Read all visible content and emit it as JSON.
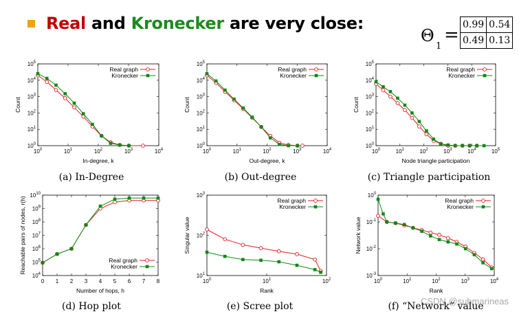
{
  "title": {
    "real": "Real",
    "and": " and ",
    "kronecker": "Kronecker",
    "rest": " are very close:"
  },
  "theta": {
    "symbol": "Θ",
    "subscript": "1",
    "equals": "=",
    "matrix": [
      [
        "0.99",
        "0.54"
      ],
      [
        "0.49",
        "0.13"
      ]
    ]
  },
  "watermark": "CSDN @submarineas",
  "colors": {
    "real": "#e8181e",
    "kronecker": "#0c8a14",
    "title_real": "#c00000",
    "title_kronecker": "#1e8a1e",
    "bullet": "#f2a20c"
  },
  "chart_data": [
    {
      "type": "line",
      "caption": "(a) In-Degree",
      "xlabel": "In-degree, k",
      "ylabel": "Count",
      "xscale": "log",
      "yscale": "log",
      "xlim": [
        1,
        10000
      ],
      "ylim": [
        1,
        100000
      ],
      "xticks": [
        1,
        10,
        100,
        1000,
        10000
      ],
      "xtick_labels": [
        "10^0",
        "10^1",
        "10^2",
        "10^3",
        "10^4"
      ],
      "yticks": [
        1,
        10,
        100,
        1000,
        10000,
        100000
      ],
      "ytick_labels": [
        "10^0",
        "10^1",
        "10^2",
        "10^3",
        "10^4",
        "10^5"
      ],
      "legend": "top-right",
      "series": [
        {
          "name": "Real graph",
          "marker": "circle-open",
          "x": [
            1,
            2,
            4,
            8,
            16,
            32,
            64,
            128,
            256,
            512,
            1024,
            3000
          ],
          "y": [
            20000,
            8000,
            2500,
            800,
            220,
            60,
            15,
            4,
            1.6,
            1.1,
            1,
            1
          ]
        },
        {
          "name": "Kronecker",
          "marker": "square-filled",
          "x": [
            1,
            2,
            4,
            8,
            16,
            32,
            64,
            128,
            256,
            512,
            1024
          ],
          "y": [
            25000,
            13000,
            5000,
            1500,
            400,
            90,
            20,
            4,
            1.4,
            1.1,
            1
          ]
        }
      ]
    },
    {
      "type": "line",
      "caption": "(b) Out-degree",
      "xlabel": "Out-degree, k",
      "ylabel": "Count",
      "xscale": "log",
      "yscale": "log",
      "xlim": [
        1,
        10000
      ],
      "ylim": [
        1,
        100000
      ],
      "xticks": [
        1,
        10,
        100,
        1000,
        10000
      ],
      "xtick_labels": [
        "10^0",
        "10^1",
        "10^2",
        "10^3",
        "10^4"
      ],
      "yticks": [
        1,
        10,
        100,
        1000,
        10000,
        100000
      ],
      "ytick_labels": [
        "10^0",
        "10^1",
        "10^2",
        "10^3",
        "10^4",
        "10^5"
      ],
      "legend": "top-right",
      "series": [
        {
          "name": "Real graph",
          "marker": "circle-open",
          "x": [
            1,
            2,
            4,
            8,
            16,
            32,
            64,
            128,
            256,
            512,
            1024,
            1500
          ],
          "y": [
            20000,
            7000,
            2000,
            600,
            180,
            50,
            14,
            4,
            1.5,
            1.1,
            1,
            1
          ]
        },
        {
          "name": "Kronecker",
          "marker": "square-filled",
          "x": [
            1,
            2,
            4,
            8,
            16,
            32,
            64,
            128,
            256,
            512,
            1024
          ],
          "y": [
            25000,
            9000,
            2500,
            700,
            200,
            55,
            14,
            3,
            1.2,
            1,
            1
          ]
        }
      ]
    },
    {
      "type": "line",
      "caption": "(c) Triangle participation",
      "xlabel": "Node triangle participation",
      "ylabel": "Count",
      "xscale": "log",
      "yscale": "log",
      "xlim": [
        1,
        100000
      ],
      "ylim": [
        1,
        100000
      ],
      "xticks": [
        1,
        10,
        100,
        1000,
        10000,
        100000
      ],
      "xtick_labels": [
        "10^0",
        "10^1",
        "10^2",
        "10^3",
        "10^4",
        "10^5"
      ],
      "yticks": [
        1,
        10,
        100,
        1000,
        10000,
        100000
      ],
      "ytick_labels": [
        "10^0",
        "10^1",
        "10^2",
        "10^3",
        "10^4",
        "10^5"
      ],
      "legend": "top-right",
      "series": [
        {
          "name": "Real graph",
          "marker": "circle-open",
          "x": [
            1,
            2,
            4,
            8,
            16,
            32,
            64,
            128,
            256,
            512,
            1024,
            2048,
            4096,
            8192,
            16384
          ],
          "y": [
            6000,
            2500,
            1000,
            400,
            150,
            50,
            15,
            5,
            2,
            1.3,
            1,
            1,
            1,
            1,
            1
          ]
        },
        {
          "name": "Kronecker",
          "marker": "square-filled",
          "x": [
            1,
            2,
            4,
            8,
            16,
            32,
            64,
            128,
            256,
            512,
            1024,
            2048,
            4096,
            8192,
            16384,
            32768
          ],
          "y": [
            8000,
            4000,
            2000,
            800,
            300,
            100,
            30,
            8,
            2.5,
            1.3,
            1.1,
            1,
            1,
            1,
            1,
            1
          ]
        }
      ]
    },
    {
      "type": "line",
      "caption": "(d) Hop plot",
      "xlabel": "Number of hops, h",
      "ylabel": "Reachable pairs of nodes, r(h)",
      "xscale": "linear",
      "yscale": "log",
      "xlim": [
        0,
        8
      ],
      "ylim": [
        10000,
        10000000000
      ],
      "xticks": [
        0,
        1,
        2,
        3,
        4,
        5,
        6,
        7,
        8
      ],
      "xtick_labels": [
        "0",
        "1",
        "2",
        "3",
        "4",
        "5",
        "6",
        "7",
        "8"
      ],
      "yticks": [
        10000,
        100000,
        1000000,
        10000000,
        100000000,
        1000000000,
        10000000000
      ],
      "ytick_labels": [
        "10^4",
        "10^5",
        "10^6",
        "10^7",
        "10^8",
        "10^9",
        "10^10"
      ],
      "legend": "bottom-right",
      "series": [
        {
          "name": "Real graph",
          "marker": "circle-open",
          "x": [
            0,
            1,
            2,
            3,
            4,
            5,
            6,
            7,
            8
          ],
          "y": [
            90000,
            400000,
            1000000,
            60000000,
            1000000000,
            3000000000,
            4000000000,
            4000000000,
            4000000000
          ]
        },
        {
          "name": "Kronecker",
          "marker": "square-filled",
          "x": [
            0,
            1,
            2,
            3,
            4,
            5,
            6,
            7,
            8
          ],
          "y": [
            90000,
            400000,
            1000000,
            60000000,
            1500000000,
            5000000000,
            6000000000,
            6000000000,
            6000000000
          ]
        }
      ]
    },
    {
      "type": "line",
      "caption": "(e) Scree plot",
      "xlabel": "Rank",
      "ylabel": "Singular value",
      "xscale": "log",
      "yscale": "log",
      "xlim": [
        1,
        100
      ],
      "ylim": [
        10,
        1000
      ],
      "xticks": [
        1,
        10,
        100
      ],
      "xtick_labels": [
        "10^0",
        "10^1",
        "10^2"
      ],
      "yticks": [
        10,
        100,
        1000
      ],
      "ytick_labels": [
        "10^1",
        "10^2",
        "10^3"
      ],
      "legend": "top-right",
      "series": [
        {
          "name": "Real graph",
          "marker": "circle-open",
          "x": [
            1,
            2,
            4,
            8,
            16,
            32,
            64,
            80
          ],
          "y": [
            140,
            80,
            58,
            48,
            40,
            34,
            25,
            13
          ]
        },
        {
          "name": "Kronecker",
          "marker": "square-filled",
          "x": [
            1,
            2,
            4,
            8,
            16,
            32,
            64,
            80
          ],
          "y": [
            38,
            30,
            25,
            24,
            22,
            18,
            14,
            12
          ]
        }
      ]
    },
    {
      "type": "line",
      "caption": "(f) “Network” value",
      "xlabel": "Rank",
      "ylabel": "Network value",
      "xscale": "log",
      "yscale": "log",
      "xlim": [
        1,
        10000
      ],
      "ylim": [
        0.001,
        1
      ],
      "xticks": [
        1,
        10,
        100,
        1000,
        10000
      ],
      "xtick_labels": [
        "10^0",
        "10^1",
        "10^2",
        "10^3",
        "10^4"
      ],
      "yticks": [
        0.001,
        0.01,
        0.1,
        1
      ],
      "ytick_labels": [
        "10^-3",
        "10^-2",
        "10^-1",
        "10^0"
      ],
      "legend": "top-right",
      "series": [
        {
          "name": "Real graph",
          "marker": "circle-open",
          "x": [
            1,
            2,
            4,
            8,
            16,
            32,
            64,
            128,
            256,
            512,
            1024,
            2048,
            4096,
            8192
          ],
          "y": [
            0.17,
            0.1,
            0.09,
            0.075,
            0.06,
            0.05,
            0.04,
            0.033,
            0.025,
            0.018,
            0.012,
            0.007,
            0.004,
            0.002
          ]
        },
        {
          "name": "Kronecker",
          "marker": "square-filled",
          "x": [
            1,
            1.5,
            2,
            4,
            8,
            16,
            32,
            64,
            128,
            256,
            512,
            1024,
            2048,
            4096,
            8192
          ],
          "y": [
            0.7,
            0.2,
            0.1,
            0.09,
            0.08,
            0.06,
            0.045,
            0.03,
            0.022,
            0.018,
            0.015,
            0.01,
            0.006,
            0.003,
            0.0018
          ]
        }
      ]
    }
  ]
}
